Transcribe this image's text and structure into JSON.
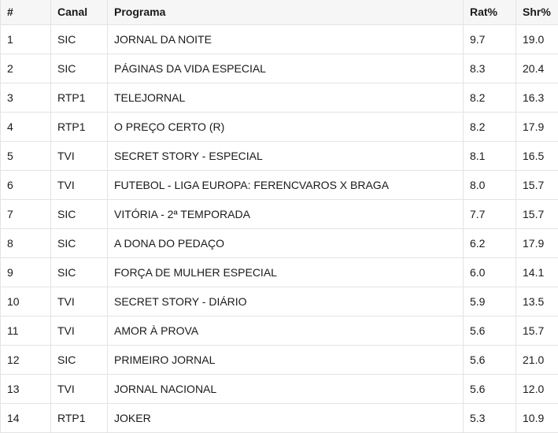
{
  "table": {
    "headers": [
      "#",
      "Canal",
      "Programa",
      "Rat%",
      "Shr%"
    ],
    "rows": [
      [
        "1",
        "SIC",
        "JORNAL DA NOITE",
        "9.7",
        "19.0"
      ],
      [
        "2",
        "SIC",
        "PÁGINAS DA VIDA ESPECIAL",
        "8.3",
        "20.4"
      ],
      [
        "3",
        "RTP1",
        "TELEJORNAL",
        "8.2",
        "16.3"
      ],
      [
        "4",
        "RTP1",
        "O PREÇO CERTO (R)",
        "8.2",
        "17.9"
      ],
      [
        "5",
        "TVI",
        "SECRET STORY - ESPECIAL",
        "8.1",
        "16.5"
      ],
      [
        "6",
        "TVI",
        "FUTEBOL - LIGA EUROPA: FERENCVAROS X BRAGA",
        "8.0",
        "15.7"
      ],
      [
        "7",
        "SIC",
        "VITÓRIA - 2ª TEMPORADA",
        "7.7",
        "15.7"
      ],
      [
        "8",
        "SIC",
        "A DONA DO PEDAÇO",
        "6.2",
        "17.9"
      ],
      [
        "9",
        "SIC",
        "FORÇA DE MULHER ESPECIAL",
        "6.0",
        "14.1"
      ],
      [
        "10",
        "TVI",
        "SECRET STORY - DIÁRIO",
        "5.9",
        "13.5"
      ],
      [
        "11",
        "TVI",
        "AMOR À PROVA",
        "5.6",
        "15.7"
      ],
      [
        "12",
        "SIC",
        "PRIMEIRO JORNAL",
        "5.6",
        "21.0"
      ],
      [
        "13",
        "TVI",
        "JORNAL NACIONAL",
        "5.6",
        "12.0"
      ],
      [
        "14",
        "RTP1",
        "JOKER",
        "5.3",
        "10.9"
      ]
    ]
  }
}
